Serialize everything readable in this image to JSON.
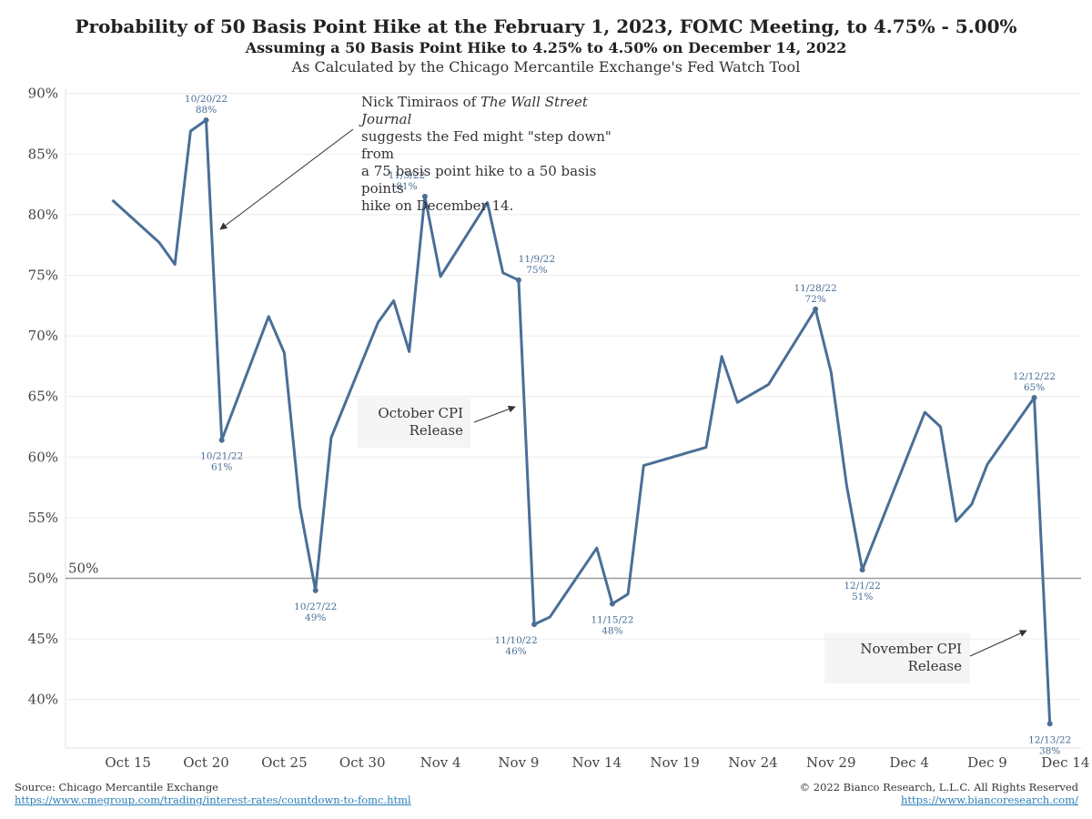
{
  "titles": {
    "title": "Probability of 50 Basis Point Hike at the February 1, 2023, FOMC Meeting, to 4.75% - 5.00%",
    "subtitle": "Assuming a 50 Basis Point Hike to 4.25% to 4.50% on December 14, 2022",
    "subtitle2": "As Calculated by the Chicago Mercantile Exchange's Fed Watch Tool"
  },
  "chart_data": {
    "type": "line",
    "y_tick_labels": [
      "40%",
      "45%",
      "50%",
      "55%",
      "60%",
      "65%",
      "70%",
      "75%",
      "80%",
      "85%",
      "90%"
    ],
    "ylim": [
      36,
      90.5
    ],
    "x_tick_labels": [
      "Oct 15",
      "Oct 20",
      "Oct 25",
      "Oct 30",
      "Nov 4",
      "Nov 9",
      "Nov 14",
      "Nov 19",
      "Nov 24",
      "Nov 29",
      "Dec 4",
      "Dec 9",
      "Dec 14"
    ],
    "xlim": [
      "2022-10-11",
      "2022-12-15"
    ],
    "grid": "horizontal",
    "reference_line": {
      "value": 50,
      "label": "50%"
    },
    "series": [
      {
        "color": "#4a6f96",
        "points": [
          [
            "2022-10-14",
            81.2
          ],
          [
            "2022-10-17",
            77.7
          ],
          [
            "2022-10-18",
            75.9
          ],
          [
            "2022-10-19",
            86.9
          ],
          [
            "2022-10-20",
            87.8
          ],
          [
            "2022-10-21",
            61.4
          ],
          [
            "2022-10-24",
            71.6
          ],
          [
            "2022-10-25",
            68.6
          ],
          [
            "2022-10-26",
            55.9
          ],
          [
            "2022-10-27",
            49.0
          ],
          [
            "2022-10-28",
            61.6
          ],
          [
            "2022-10-31",
            71.1
          ],
          [
            "2022-11-01",
            72.9
          ],
          [
            "2022-11-02",
            68.7
          ],
          [
            "2022-11-03",
            81.5
          ],
          [
            "2022-11-04",
            74.9
          ],
          [
            "2022-11-07",
            81.0
          ],
          [
            "2022-11-08",
            75.2
          ],
          [
            "2022-11-09",
            74.6
          ],
          [
            "2022-11-10",
            46.2
          ],
          [
            "2022-11-11",
            46.8
          ],
          [
            "2022-11-14",
            52.5
          ],
          [
            "2022-11-15",
            47.9
          ],
          [
            "2022-11-16",
            48.7
          ],
          [
            "2022-11-17",
            59.3
          ],
          [
            "2022-11-21",
            60.8
          ],
          [
            "2022-11-22",
            68.3
          ],
          [
            "2022-11-23",
            64.5
          ],
          [
            "2022-11-25",
            66.0
          ],
          [
            "2022-11-28",
            72.2
          ],
          [
            "2022-11-29",
            67.0
          ],
          [
            "2022-11-30",
            57.6
          ],
          [
            "2022-12-01",
            50.7
          ],
          [
            "2022-12-05",
            63.7
          ],
          [
            "2022-12-06",
            62.5
          ],
          [
            "2022-12-07",
            54.7
          ],
          [
            "2022-12-08",
            56.1
          ],
          [
            "2022-12-09",
            59.4
          ],
          [
            "2022-12-12",
            64.9
          ],
          [
            "2022-12-13",
            38.0
          ]
        ]
      }
    ],
    "data_labels": [
      {
        "x": "2022-10-20",
        "y": 87.8,
        "date": "10/20/22",
        "value": "88%",
        "pos": "above"
      },
      {
        "x": "2022-10-21",
        "y": 61.4,
        "date": "10/21/22",
        "value": "61%",
        "pos": "below"
      },
      {
        "x": "2022-10-27",
        "y": 49.0,
        "date": "10/27/22",
        "value": "49%",
        "pos": "below"
      },
      {
        "x": "2022-11-03",
        "y": 81.5,
        "date": "11/3/22",
        "value": "81%",
        "pos": "aboveleft"
      },
      {
        "x": "2022-11-09",
        "y": 74.6,
        "date": "11/9/22",
        "value": "75%",
        "pos": "aboveright"
      },
      {
        "x": "2022-11-10",
        "y": 46.2,
        "date": "11/10/22",
        "value": "46%",
        "pos": "belowleft"
      },
      {
        "x": "2022-11-15",
        "y": 47.9,
        "date": "11/15/22",
        "value": "48%",
        "pos": "below"
      },
      {
        "x": "2022-11-28",
        "y": 72.2,
        "date": "11/28/22",
        "value": "72%",
        "pos": "above"
      },
      {
        "x": "2022-12-01",
        "y": 50.7,
        "date": "12/1/22",
        "value": "51%",
        "pos": "below"
      },
      {
        "x": "2022-12-12",
        "y": 64.9,
        "date": "12/12/22",
        "value": "65%",
        "pos": "above"
      },
      {
        "x": "2022-12-13",
        "y": 38.0,
        "date": "12/13/22",
        "value": "38%",
        "pos": "below"
      }
    ],
    "annotations": {
      "timiraos": {
        "line1_prefix": "Nick Timiraos of ",
        "line1_italic": "The Wall Street Journal",
        "line2": "suggests the Fed might \"step down\" from",
        "line3": "a 75 basis point hike to a 50 basis points",
        "line4": "hike on December 14."
      },
      "october_cpi": {
        "line1": "October CPI",
        "line2": "Release"
      },
      "november_cpi": {
        "line1": "November CPI",
        "line2": "Release"
      }
    }
  },
  "footer": {
    "source": "Source: Chicago Mercantile Exchange",
    "source_url": "https://www.cmegroup.com/trading/interest-rates/countdown-to-fomc.html",
    "copyright": "© 2022 Bianco Research, L.L.C. All Rights Reserved",
    "site_url": "https://www.biancoresearch.com/"
  }
}
